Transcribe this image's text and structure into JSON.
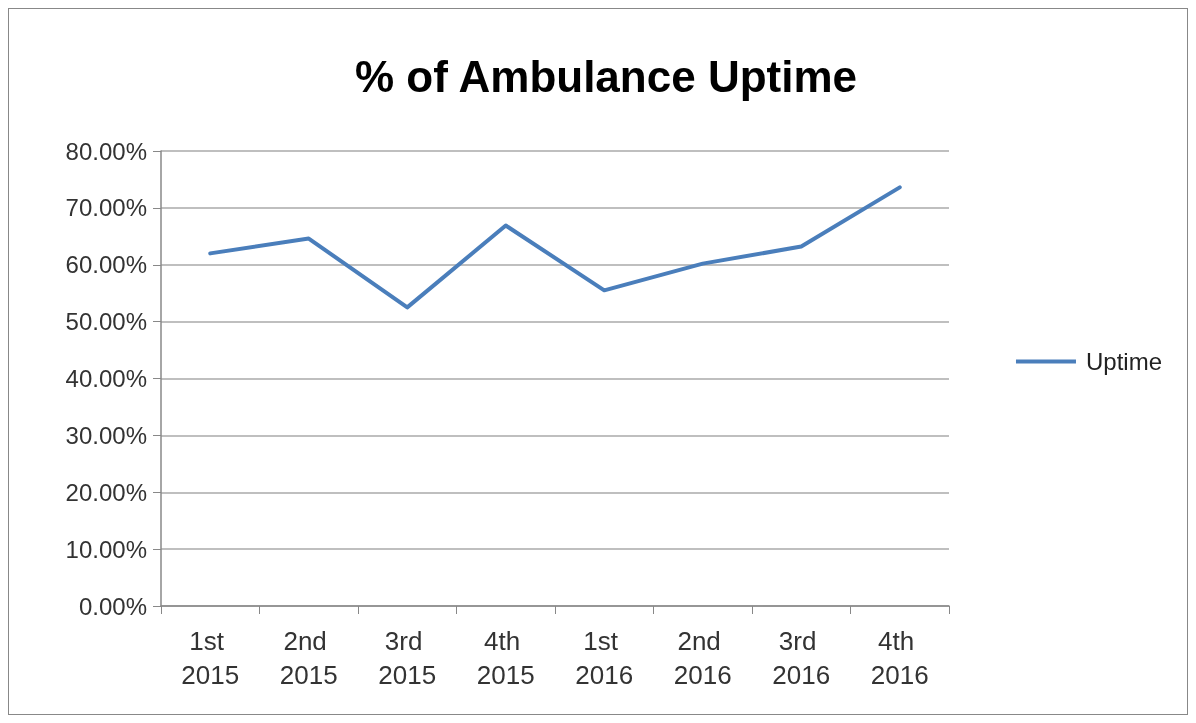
{
  "chart_data": {
    "type": "line",
    "title": "% of Ambulance Uptime",
    "categories": [
      "1st 2015",
      "2nd 2015",
      "3rd 2015",
      "4th 2015",
      "1st 2016",
      "2nd 2016",
      "3rd 2016",
      "4th 2016"
    ],
    "series": [
      {
        "name": "Uptime",
        "color": "#4a7ebb",
        "values": [
          62.0,
          64.6,
          52.5,
          66.9,
          55.5,
          60.2,
          63.2,
          73.6
        ]
      }
    ],
    "ylim": [
      0,
      80
    ],
    "yticks": [
      {
        "value": 0,
        "label": "0.00%"
      },
      {
        "value": 10,
        "label": "10.00%"
      },
      {
        "value": 20,
        "label": "20.00%"
      },
      {
        "value": 30,
        "label": "30.00%"
      },
      {
        "value": 40,
        "label": "40.00%"
      },
      {
        "value": 50,
        "label": "50.00%"
      },
      {
        "value": 60,
        "label": "60.00%"
      },
      {
        "value": 70,
        "label": "70.00%"
      },
      {
        "value": 80,
        "label": "80.00%"
      }
    ],
    "grid": "y",
    "legend": "right",
    "marker": "none",
    "line_style": "solid"
  }
}
